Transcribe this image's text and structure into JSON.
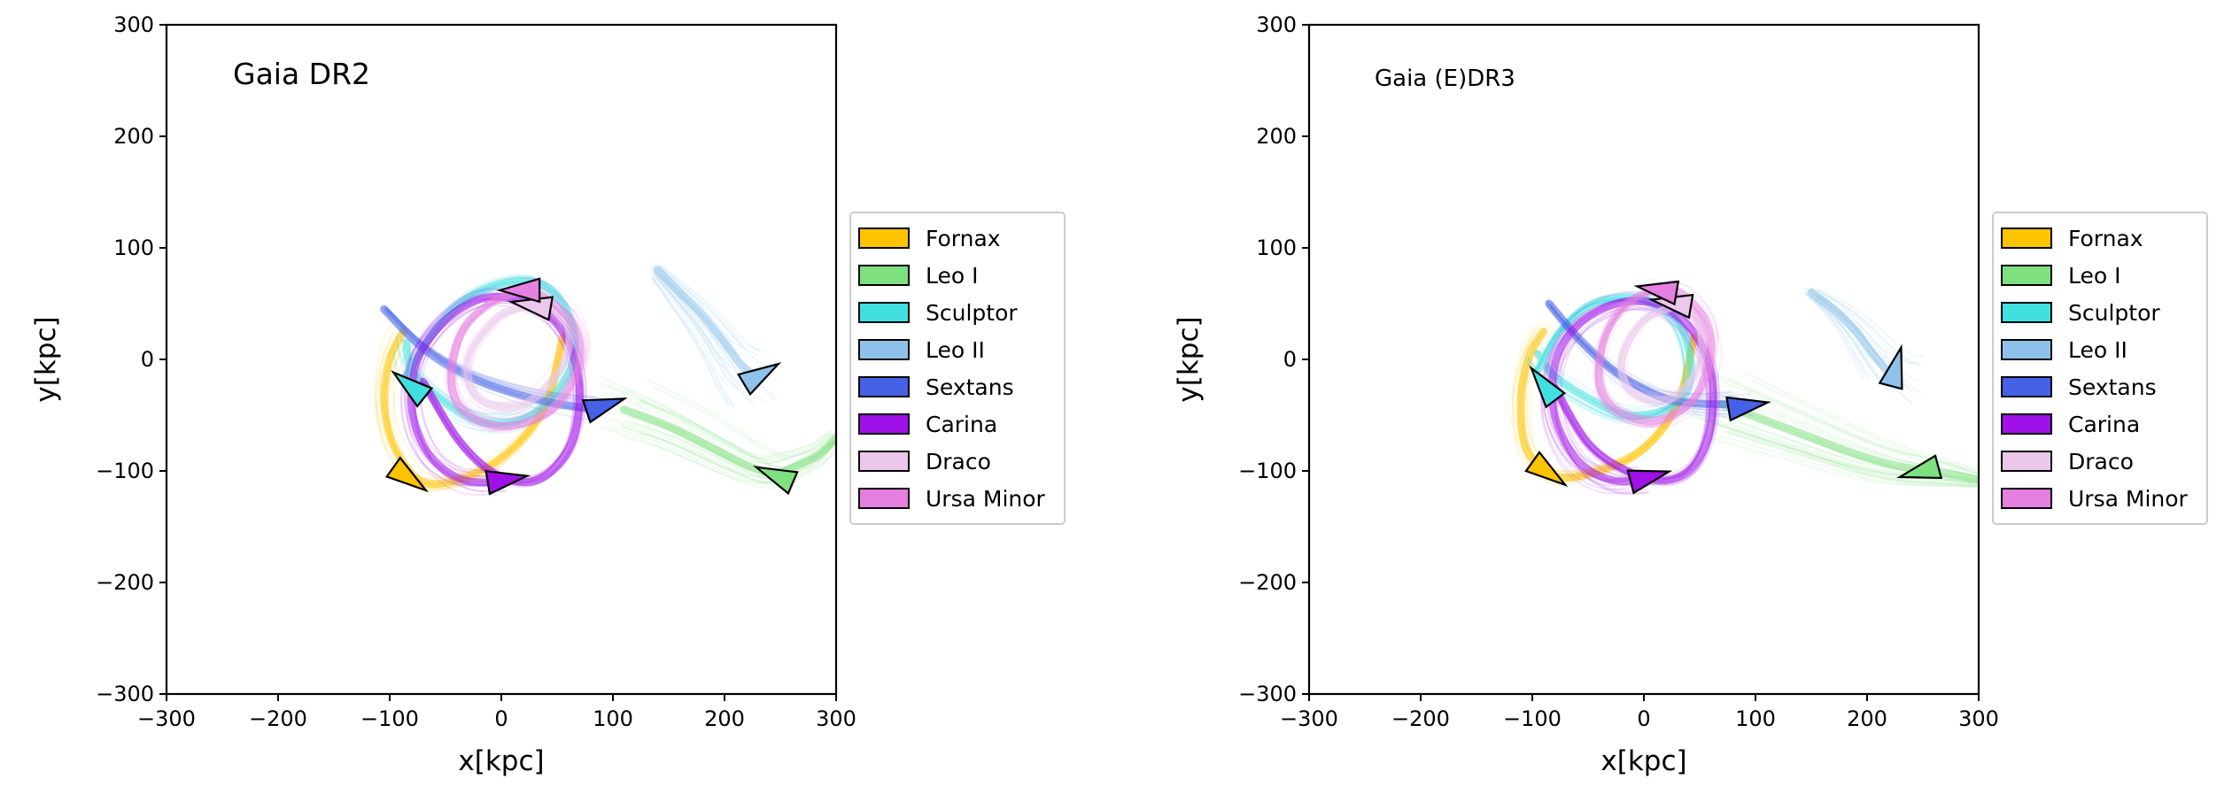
{
  "chart_data": [
    {
      "type": "line",
      "title": "Gaia DR2",
      "xlabel": "x[kpc]",
      "ylabel": "y[kpc]",
      "xlim": [
        -300,
        300
      ],
      "ylim": [
        -300,
        300
      ],
      "xticks": [
        -300,
        -200,
        -100,
        0,
        100,
        200,
        300
      ],
      "yticks": [
        -300,
        -200,
        -100,
        0,
        100,
        200,
        300
      ],
      "xtick_labels": [
        "−300",
        "−200",
        "−100",
        "0",
        "100",
        "200",
        "300"
      ],
      "ytick_labels": [
        "−300",
        "−200",
        "−100",
        "0",
        "100",
        "200",
        "300"
      ],
      "grid": false,
      "legend_position": "right",
      "series": [
        {
          "name": "Fornax",
          "color": "#FFC300",
          "x": [
            55,
            40,
            10,
            -30,
            -70,
            -95,
            -105,
            -100,
            -88
          ],
          "y": [
            20,
            -40,
            -80,
            -105,
            -110,
            -80,
            -40,
            0,
            25
          ],
          "current": [
            -85,
            -105
          ],
          "direction": [
            35,
            -25
          ]
        },
        {
          "name": "Leo I",
          "color": "#7FE07F",
          "x": [
            300,
            285,
            265,
            245,
            220,
            190,
            150,
            110
          ],
          "y": [
            -70,
            -85,
            -95,
            -102,
            -95,
            -80,
            -60,
            -45
          ],
          "current": [
            248,
            -105
          ],
          "direction": [
            -35,
            15
          ]
        },
        {
          "name": "Sculptor",
          "color": "#40E0E0",
          "x": [
            -85,
            -60,
            -30,
            10,
            40,
            60,
            65,
            45,
            15,
            -20,
            -55,
            -80,
            -85
          ],
          "y": [
            -15,
            25,
            55,
            70,
            65,
            40,
            0,
            -35,
            -55,
            -55,
            -35,
            -10,
            15
          ],
          "current": [
            -80,
            -25
          ],
          "direction": [
            -25,
            20
          ]
        },
        {
          "name": "Leo II",
          "color": "#8EC2EA",
          "x": [
            140,
            160,
            180,
            200,
            215,
            228
          ],
          "y": [
            80,
            60,
            40,
            15,
            -5,
            -15
          ],
          "current": [
            230,
            -15
          ],
          "direction": [
            30,
            18
          ]
        },
        {
          "name": "Sextans",
          "color": "#4561E6",
          "x": [
            -105,
            -70,
            -30,
            10,
            50,
            85
          ],
          "y": [
            45,
            10,
            -15,
            -30,
            -40,
            -45
          ],
          "current": [
            90,
            -42
          ],
          "direction": [
            30,
            10
          ]
        },
        {
          "name": "Carina",
          "color": "#A010E8",
          "x": [
            -70,
            -40,
            -10,
            20,
            45,
            65,
            70,
            55,
            25,
            -15,
            -50,
            -75,
            -80,
            -65,
            -35,
            0
          ],
          "y": [
            -20,
            -70,
            -100,
            -110,
            -100,
            -70,
            -20,
            25,
            50,
            55,
            35,
            0,
            -45,
            -85,
            -108,
            -110
          ],
          "current": [
            2,
            -108
          ],
          "direction": [
            30,
            5
          ]
        },
        {
          "name": "Draco",
          "color": "#EBC8EB",
          "x": [
            40,
            0,
            -30,
            -20,
            20,
            55,
            60,
            40
          ],
          "y": [
            50,
            40,
            0,
            -35,
            -40,
            -5,
            30,
            50
          ],
          "current": [
            30,
            48
          ],
          "direction": [
            -30,
            5
          ]
        },
        {
          "name": "Ursa Minor",
          "color": "#E57FE0",
          "x": [
            20,
            -10,
            -35,
            -45,
            -35,
            0,
            45,
            70,
            65,
            40,
            20
          ],
          "y": [
            62,
            50,
            25,
            -15,
            -45,
            -60,
            -45,
            -5,
            30,
            55,
            62
          ],
          "current": [
            20,
            62
          ],
          "direction": [
            -30,
            0
          ]
        }
      ]
    },
    {
      "type": "line",
      "title": "Gaia (E)DR3",
      "xlabel": "x[kpc]",
      "ylabel": "y[kpc]",
      "xlim": [
        -300,
        300
      ],
      "ylim": [
        -300,
        300
      ],
      "xticks": [
        -300,
        -200,
        -100,
        0,
        100,
        200,
        300
      ],
      "yticks": [
        -300,
        -200,
        -100,
        0,
        100,
        200,
        300
      ],
      "xtick_labels": [
        "−300",
        "−200",
        "−100",
        "0",
        "100",
        "200",
        "300"
      ],
      "ytick_labels": [
        "−300",
        "−200",
        "−100",
        "0",
        "100",
        "200",
        "300"
      ],
      "grid": false,
      "legend_position": "right",
      "series": [
        {
          "name": "Fornax",
          "color": "#FFC300",
          "x": [
            45,
            30,
            0,
            -40,
            -80,
            -105,
            -110,
            -102,
            -90
          ],
          "y": [
            20,
            -40,
            -80,
            -100,
            -105,
            -80,
            -35,
            5,
            25
          ],
          "current": [
            -88,
            -100
          ],
          "direction": [
            35,
            -25
          ]
        },
        {
          "name": "Leo I",
          "color": "#7FE07F",
          "x": [
            300,
            280,
            255,
            225,
            190,
            150,
            110,
            70
          ],
          "y": [
            -108,
            -104,
            -100,
            -95,
            -85,
            -70,
            -55,
            -40
          ],
          "current": [
            250,
            -100
          ],
          "direction": [
            -30,
            -8
          ]
        },
        {
          "name": "Sculptor",
          "color": "#40E0E0",
          "x": [
            -95,
            -75,
            -45,
            -5,
            25,
            40,
            40,
            20,
            -15,
            -50,
            -80,
            -95
          ],
          "y": [
            -10,
            25,
            50,
            55,
            40,
            10,
            -25,
            -45,
            -50,
            -35,
            -15,
            5
          ],
          "current": [
            -88,
            -25
          ],
          "direction": [
            -15,
            20
          ]
        },
        {
          "name": "Leo II",
          "color": "#8EC2EA",
          "x": [
            150,
            170,
            190,
            205,
            218,
            225
          ],
          "y": [
            60,
            45,
            25,
            5,
            -10,
            -15
          ],
          "current": [
            225,
            -10
          ],
          "direction": [
            8,
            30
          ]
        },
        {
          "name": "Sextans",
          "color": "#4561E6",
          "x": [
            -85,
            -55,
            -20,
            20,
            55,
            90
          ],
          "y": [
            50,
            15,
            -15,
            -35,
            -40,
            -40
          ],
          "current": [
            90,
            -42
          ],
          "direction": [
            30,
            5
          ]
        },
        {
          "name": "Carina",
          "color": "#A010E8",
          "x": [
            -80,
            -50,
            -15,
            20,
            45,
            60,
            60,
            40,
            10,
            -25,
            -60,
            -80,
            -80,
            -60,
            -30,
            0
          ],
          "y": [
            -25,
            -75,
            -100,
            -108,
            -95,
            -60,
            -10,
            30,
            50,
            50,
            30,
            -5,
            -50,
            -90,
            -108,
            -108
          ],
          "current": [
            2,
            -106
          ],
          "direction": [
            30,
            8
          ]
        },
        {
          "name": "Draco",
          "color": "#EBC8EB",
          "x": [
            35,
            0,
            -20,
            -10,
            25,
            50,
            50,
            35
          ],
          "y": [
            50,
            35,
            0,
            -30,
            -35,
            -5,
            30,
            48
          ],
          "current": [
            28,
            50
          ],
          "direction": [
            -30,
            5
          ]
        },
        {
          "name": "Ursa Minor",
          "color": "#E57FE0",
          "x": [
            15,
            -15,
            -35,
            -40,
            -25,
            10,
            45,
            60,
            55,
            35,
            15
          ],
          "y": [
            65,
            50,
            20,
            -20,
            -45,
            -55,
            -35,
            5,
            35,
            58,
            65
          ],
          "current": [
            15,
            62
          ],
          "direction": [
            -30,
            5
          ]
        }
      ]
    }
  ]
}
